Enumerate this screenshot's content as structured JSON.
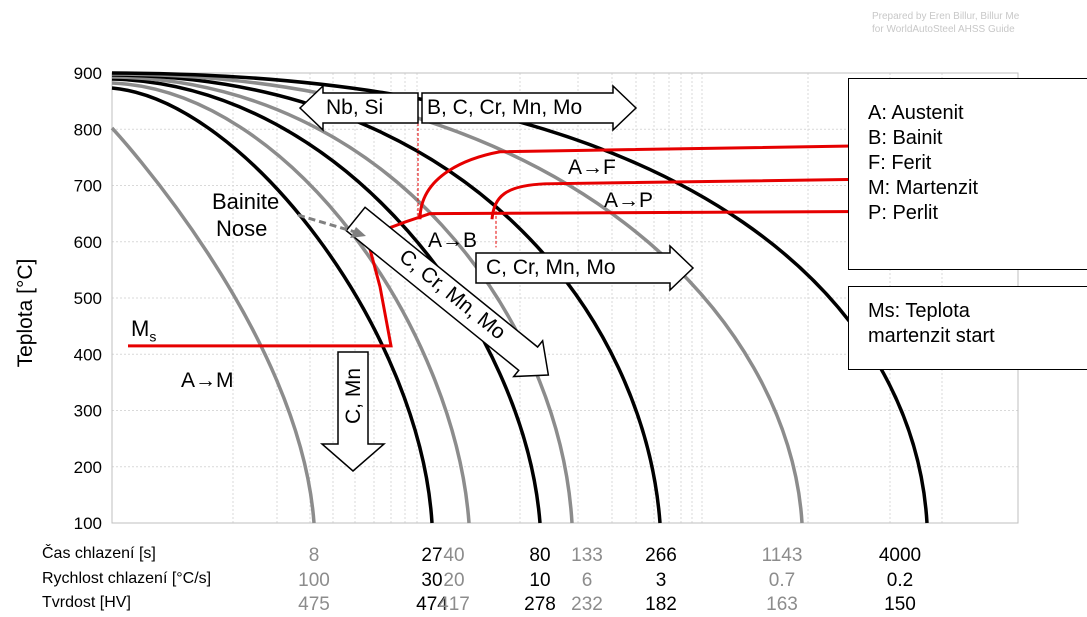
{
  "credit": [
    "Prepared by Eren Billur, Billur Me",
    "for WorldAutoSteel AHSS Guide"
  ],
  "y_axis_label": "Teplota [°C]",
  "chart_data": {
    "type": "line",
    "title": "",
    "xlabel": "",
    "ylabel": "Teplota [°C]",
    "ylim": [
      100,
      900
    ],
    "yticks": [
      100,
      200,
      300,
      400,
      500,
      600,
      700,
      800,
      900
    ],
    "x_scale": "log",
    "grid": true,
    "cooling_curves": {
      "time_s": [
        "8",
        "27",
        "40",
        "80",
        "133",
        "266",
        "1143",
        "4000"
      ],
      "rate_c_per_s": [
        "100",
        "30",
        "20",
        "10",
        "6",
        "3",
        "0.7",
        "0.2"
      ],
      "hardness_hv": [
        "475",
        "474",
        "417",
        "278",
        "232",
        "182",
        "163",
        "150"
      ],
      "colors": [
        "#8c8c8c",
        "#000000",
        "#8c8c8c",
        "#000000",
        "#8c8c8c",
        "#000000",
        "#8c8c8c",
        "#000000"
      ]
    },
    "transformation_start_temps": {
      "ferrite_c": 775,
      "pearlite_c": 715,
      "bainite_c": 655,
      "martensite_start_c": 415
    },
    "region_labels": [
      "A→F",
      "A→P",
      "A→B",
      "A→M"
    ]
  },
  "row_labels": [
    "Čas chlazení [s]",
    "Rychlost chlazení [°C/s]",
    "Tvrdost [HV]"
  ],
  "annotations": {
    "bainite_nose": [
      "Bainite",
      "Nose"
    ],
    "ms_label": "M",
    "ms_sub": "s",
    "arrow_nb_si": "Nb, Si",
    "arrow_b_group": "B, C, Cr, Mn, Mo",
    "arrow_c_cr_mn_mo": "C, Cr, Mn, Mo",
    "arrow_diag": "C, Cr, Mn, Mo",
    "arrow_c_mn": "C, Mn"
  },
  "legend": {
    "phases": [
      "A: Austenit",
      "B: Bainit",
      "F: Ferit",
      "M: Martenzit",
      "P: Perlit"
    ],
    "ms": [
      "Ms: Teplota",
      "martenzit start"
    ]
  },
  "colors": {
    "transformation_line": "#e60000",
    "grid": "#d9d9d9"
  }
}
